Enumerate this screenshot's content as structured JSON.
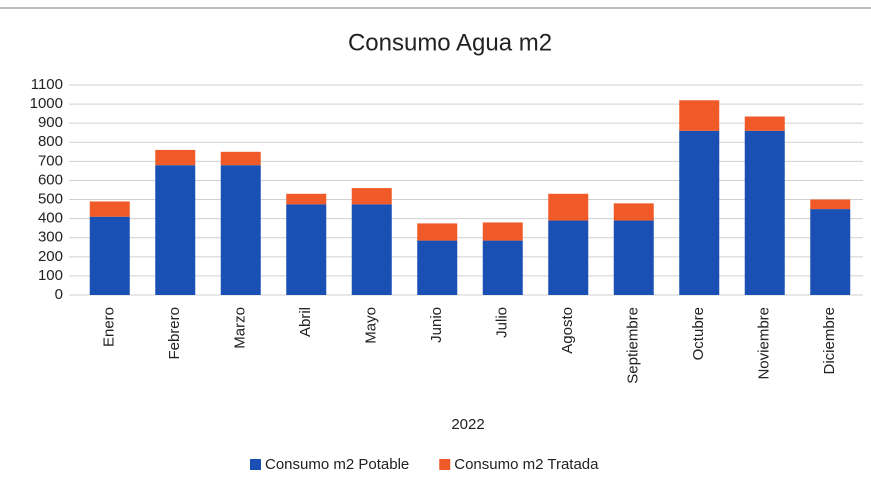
{
  "chart_data": {
    "type": "stacked_bar",
    "title": "Consumo Agua m2",
    "x_label": "2022",
    "categories": [
      "Enero",
      "Febrero",
      "Marzo",
      "Abril",
      "Mayo",
      "Junio",
      "Julio",
      "Agosto",
      "Septiembre",
      "Octubre",
      "Noviembre",
      "Diciembre"
    ],
    "series": [
      {
        "name": "Consumo m2 Potable",
        "color": "#1a4fb4",
        "values": [
          410,
          680,
          680,
          475,
          475,
          285,
          285,
          390,
          390,
          860,
          860,
          450
        ]
      },
      {
        "name": "Consumo m2 Tratada",
        "color": "#f05a28",
        "values": [
          80,
          80,
          70,
          55,
          85,
          90,
          95,
          140,
          90,
          160,
          75,
          50
        ]
      }
    ],
    "ylim": [
      0,
      1100
    ],
    "yticks": [
      0,
      100,
      200,
      300,
      400,
      500,
      600,
      700,
      800,
      900,
      1000,
      1100
    ],
    "grid": true
  }
}
